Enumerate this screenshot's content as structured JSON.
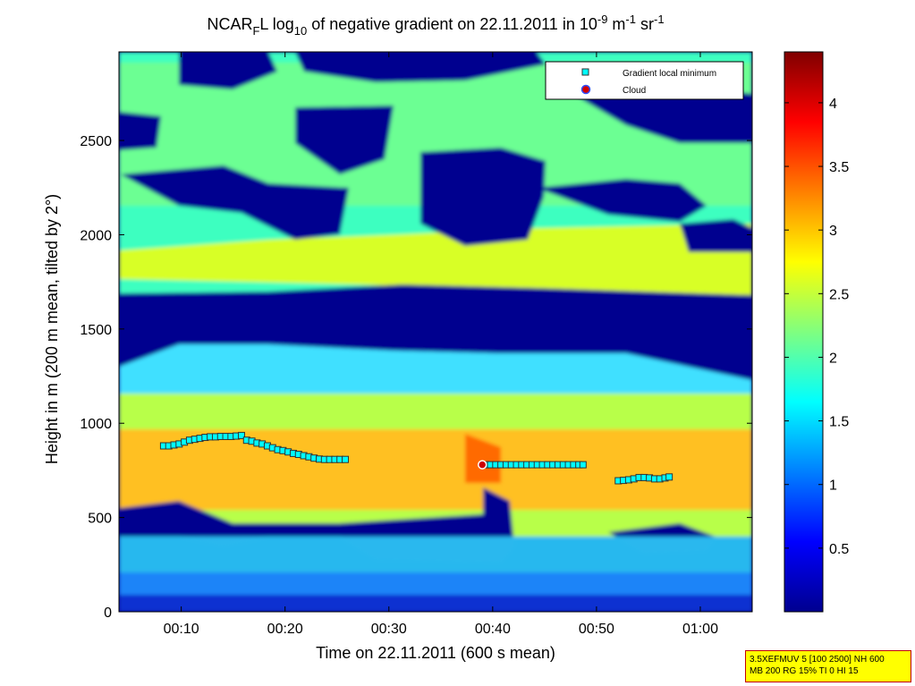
{
  "chart_data": {
    "type": "heatmap",
    "title_parts": {
      "a": "NCAR",
      "a_sub": "F",
      "b": "L log",
      "b_sub": "10",
      "c": " of negative gradient on 22.11.2011 in 10",
      "c_sup": "-9",
      "d": " m",
      "d_sup": "-1",
      "e": " sr",
      "e_sup": "-1"
    },
    "xlabel": "Time on 22.11.2011 (600 s mean)",
    "ylabel": "Height in m (200 m mean, tilted by 2°)",
    "x_range_minutes": [
      4,
      65
    ],
    "y_range": [
      0,
      2970
    ],
    "x_ticks": [
      {
        "t": 10,
        "label": "00:10"
      },
      {
        "t": 20,
        "label": "00:20"
      },
      {
        "t": 30,
        "label": "00:30"
      },
      {
        "t": 40,
        "label": "00:40"
      },
      {
        "t": 50,
        "label": "00:50"
      },
      {
        "t": 60,
        "label": "01:00"
      }
    ],
    "y_ticks": [
      0,
      500,
      1000,
      1500,
      2000,
      2500
    ],
    "colorbar": {
      "range": [
        0,
        4.4
      ],
      "ticks": [
        0.5,
        1,
        1.5,
        2,
        2.5,
        3,
        3.5,
        4
      ],
      "colormap": "jet"
    },
    "legend": {
      "position": "top-right",
      "entries": [
        "Gradient local minimum",
        "Cloud"
      ]
    },
    "series": [
      {
        "name": "Gradient local minimum",
        "marker": "square",
        "color": "#00ffff",
        "points": [
          [
            8.3,
            880
          ],
          [
            8.8,
            880
          ],
          [
            9.3,
            885
          ],
          [
            9.8,
            890
          ],
          [
            10.3,
            900
          ],
          [
            10.8,
            910
          ],
          [
            11.3,
            915
          ],
          [
            11.8,
            920
          ],
          [
            12.3,
            925
          ],
          [
            12.8,
            928
          ],
          [
            13.3,
            928
          ],
          [
            13.8,
            930
          ],
          [
            14.3,
            930
          ],
          [
            14.8,
            930
          ],
          [
            15.3,
            932
          ],
          [
            15.8,
            935
          ],
          [
            16.3,
            910
          ],
          [
            16.8,
            905
          ],
          [
            17.3,
            895
          ],
          [
            17.8,
            890
          ],
          [
            18.3,
            880
          ],
          [
            18.8,
            870
          ],
          [
            19.3,
            860
          ],
          [
            19.8,
            855
          ],
          [
            20.3,
            848
          ],
          [
            20.8,
            840
          ],
          [
            21.3,
            835
          ],
          [
            21.8,
            828
          ],
          [
            22.3,
            822
          ],
          [
            22.8,
            815
          ],
          [
            23.3,
            810
          ],
          [
            23.8,
            808
          ],
          [
            24.3,
            808
          ],
          [
            24.8,
            808
          ],
          [
            25.3,
            808
          ],
          [
            25.8,
            808
          ],
          [
            39.3,
            780
          ],
          [
            39.8,
            780
          ],
          [
            40.3,
            780
          ],
          [
            40.8,
            780
          ],
          [
            41.3,
            780
          ],
          [
            41.8,
            780
          ],
          [
            42.3,
            780
          ],
          [
            42.8,
            780
          ],
          [
            43.3,
            780
          ],
          [
            43.8,
            780
          ],
          [
            44.3,
            780
          ],
          [
            44.8,
            780
          ],
          [
            45.3,
            780
          ],
          [
            45.8,
            780
          ],
          [
            46.3,
            780
          ],
          [
            46.8,
            780
          ],
          [
            47.3,
            780
          ],
          [
            47.8,
            780
          ],
          [
            48.3,
            780
          ],
          [
            48.7,
            780
          ],
          [
            52.1,
            695
          ],
          [
            52.6,
            697
          ],
          [
            53.1,
            700
          ],
          [
            53.6,
            705
          ],
          [
            54.1,
            712
          ],
          [
            54.6,
            712
          ],
          [
            55.1,
            710
          ],
          [
            55.6,
            705
          ],
          [
            56.1,
            705
          ],
          [
            56.6,
            710
          ],
          [
            57.0,
            715
          ]
        ]
      },
      {
        "name": "Cloud",
        "marker": "circle",
        "color": "#cc0000",
        "points": [
          [
            39.0,
            780
          ]
        ]
      }
    ]
  },
  "info_box": {
    "line1": "3.5XEFMUV 5 [100 2500] NH 600",
    "line2": "MB 200 RG 15% TI 0 HI 15"
  },
  "colors": {
    "info_box_bg": "#ffff00",
    "info_box_border": "#c00000"
  }
}
